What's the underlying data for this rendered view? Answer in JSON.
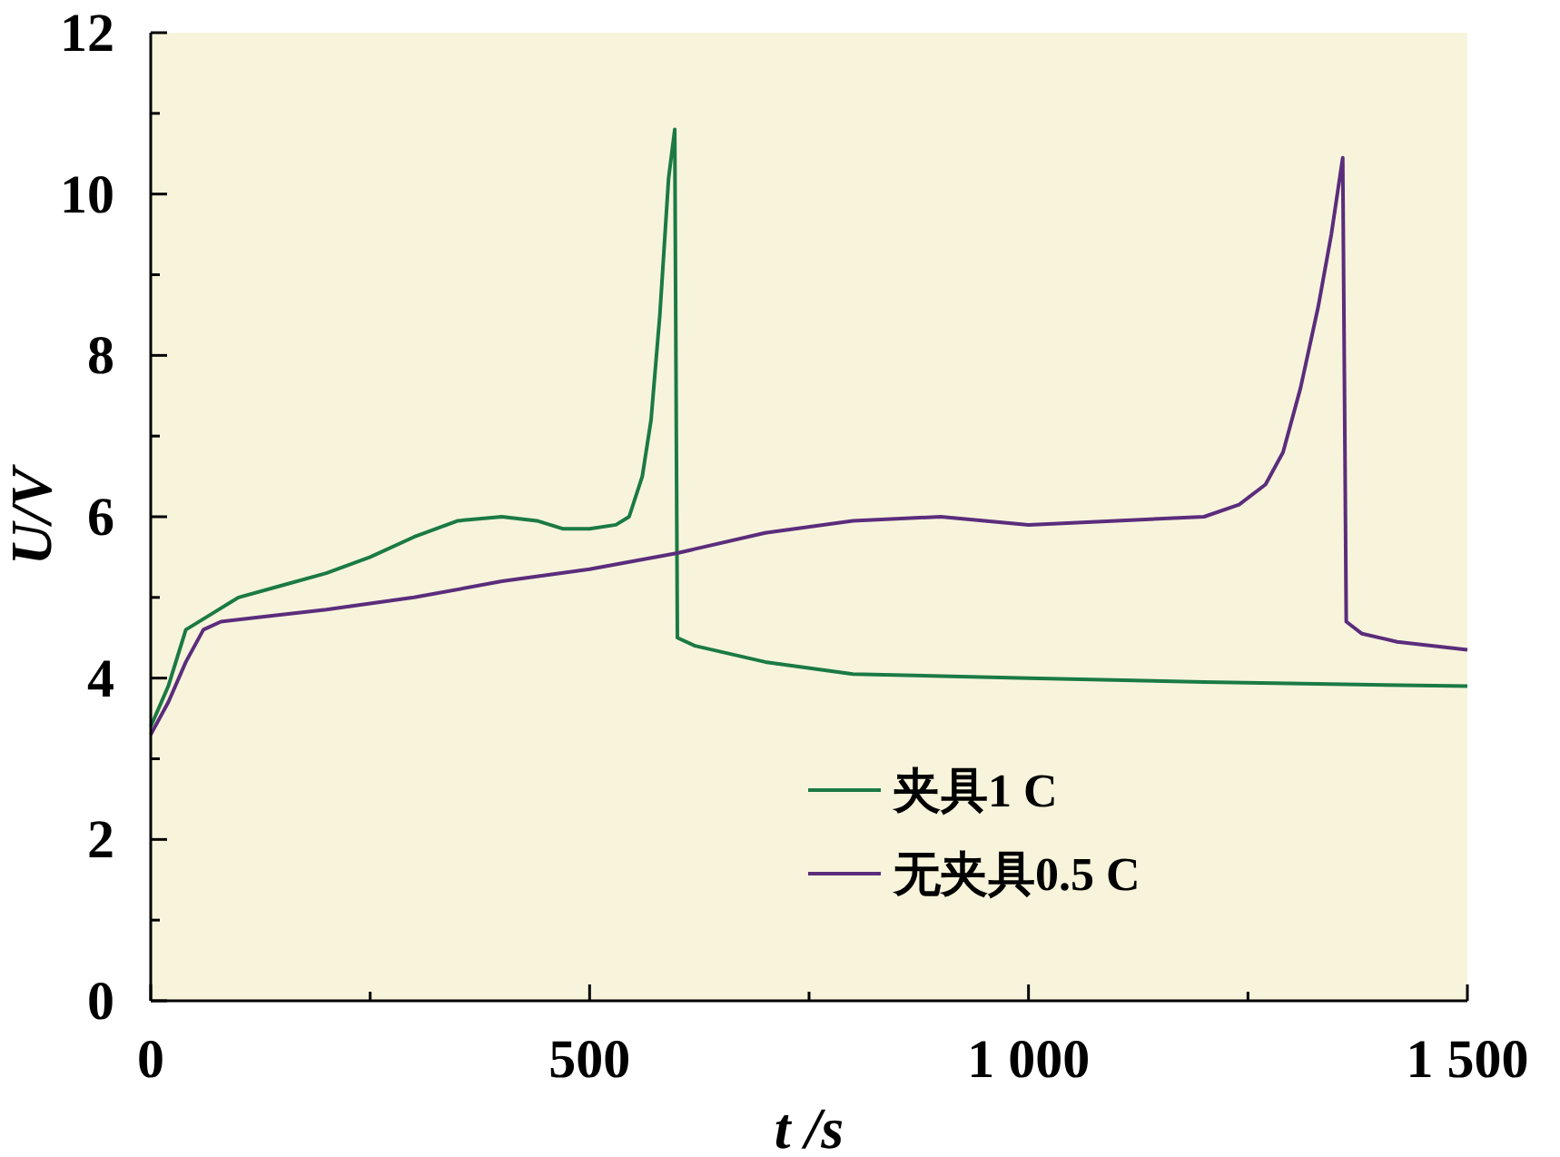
{
  "chart_data": {
    "type": "line",
    "xlabel": "t /s",
    "ylabel": "U/V",
    "xlim": [
      0,
      1500
    ],
    "ylim": [
      0,
      12
    ],
    "xticks": [
      0,
      {
        "value": 250,
        "label": null
      },
      500,
      {
        "value": 750,
        "label": null
      },
      {
        "value": 1000,
        "label": "1 000"
      },
      {
        "value": 1250,
        "label": null
      },
      {
        "value": 1500,
        "label": "1 500"
      }
    ],
    "yticks": [
      0,
      {
        "value": 1,
        "label": null
      },
      2,
      {
        "value": 3,
        "label": null
      },
      4,
      {
        "value": 5,
        "label": null
      },
      6,
      {
        "value": 7,
        "label": null
      },
      8,
      {
        "value": 9,
        "label": null
      },
      10,
      {
        "value": 11,
        "label": null
      },
      12
    ],
    "legend": "bottom",
    "line_style": "solid",
    "series": [
      {
        "name": "夹具1 C",
        "color": "#1b7a43",
        "x": [
          0,
          20,
          40,
          70,
          100,
          150,
          200,
          250,
          300,
          350,
          400,
          440,
          470,
          500,
          530,
          545,
          560,
          570,
          580,
          590,
          597,
          600,
          620,
          700,
          800,
          1000,
          1200,
          1500
        ],
        "values": [
          3.4,
          3.9,
          4.6,
          4.8,
          5.0,
          5.15,
          5.3,
          5.5,
          5.75,
          5.95,
          6.0,
          5.95,
          5.85,
          5.85,
          5.9,
          6.0,
          6.5,
          7.2,
          8.5,
          10.2,
          10.8,
          4.5,
          4.4,
          4.2,
          4.05,
          4.0,
          3.95,
          3.9
        ]
      },
      {
        "name": "无夹具0.5 C",
        "color": "#5b2d7c",
        "x": [
          0,
          20,
          40,
          60,
          80,
          120,
          200,
          300,
          400,
          500,
          600,
          700,
          800,
          900,
          1000,
          1100,
          1200,
          1240,
          1270,
          1290,
          1310,
          1330,
          1345,
          1358,
          1362,
          1380,
          1420,
          1500
        ],
        "values": [
          3.3,
          3.7,
          4.2,
          4.6,
          4.7,
          4.75,
          4.85,
          5.0,
          5.2,
          5.35,
          5.55,
          5.8,
          5.95,
          6.0,
          5.9,
          5.95,
          6.0,
          6.15,
          6.4,
          6.8,
          7.6,
          8.6,
          9.5,
          10.45,
          4.7,
          4.55,
          4.45,
          4.35
        ]
      }
    ]
  }
}
